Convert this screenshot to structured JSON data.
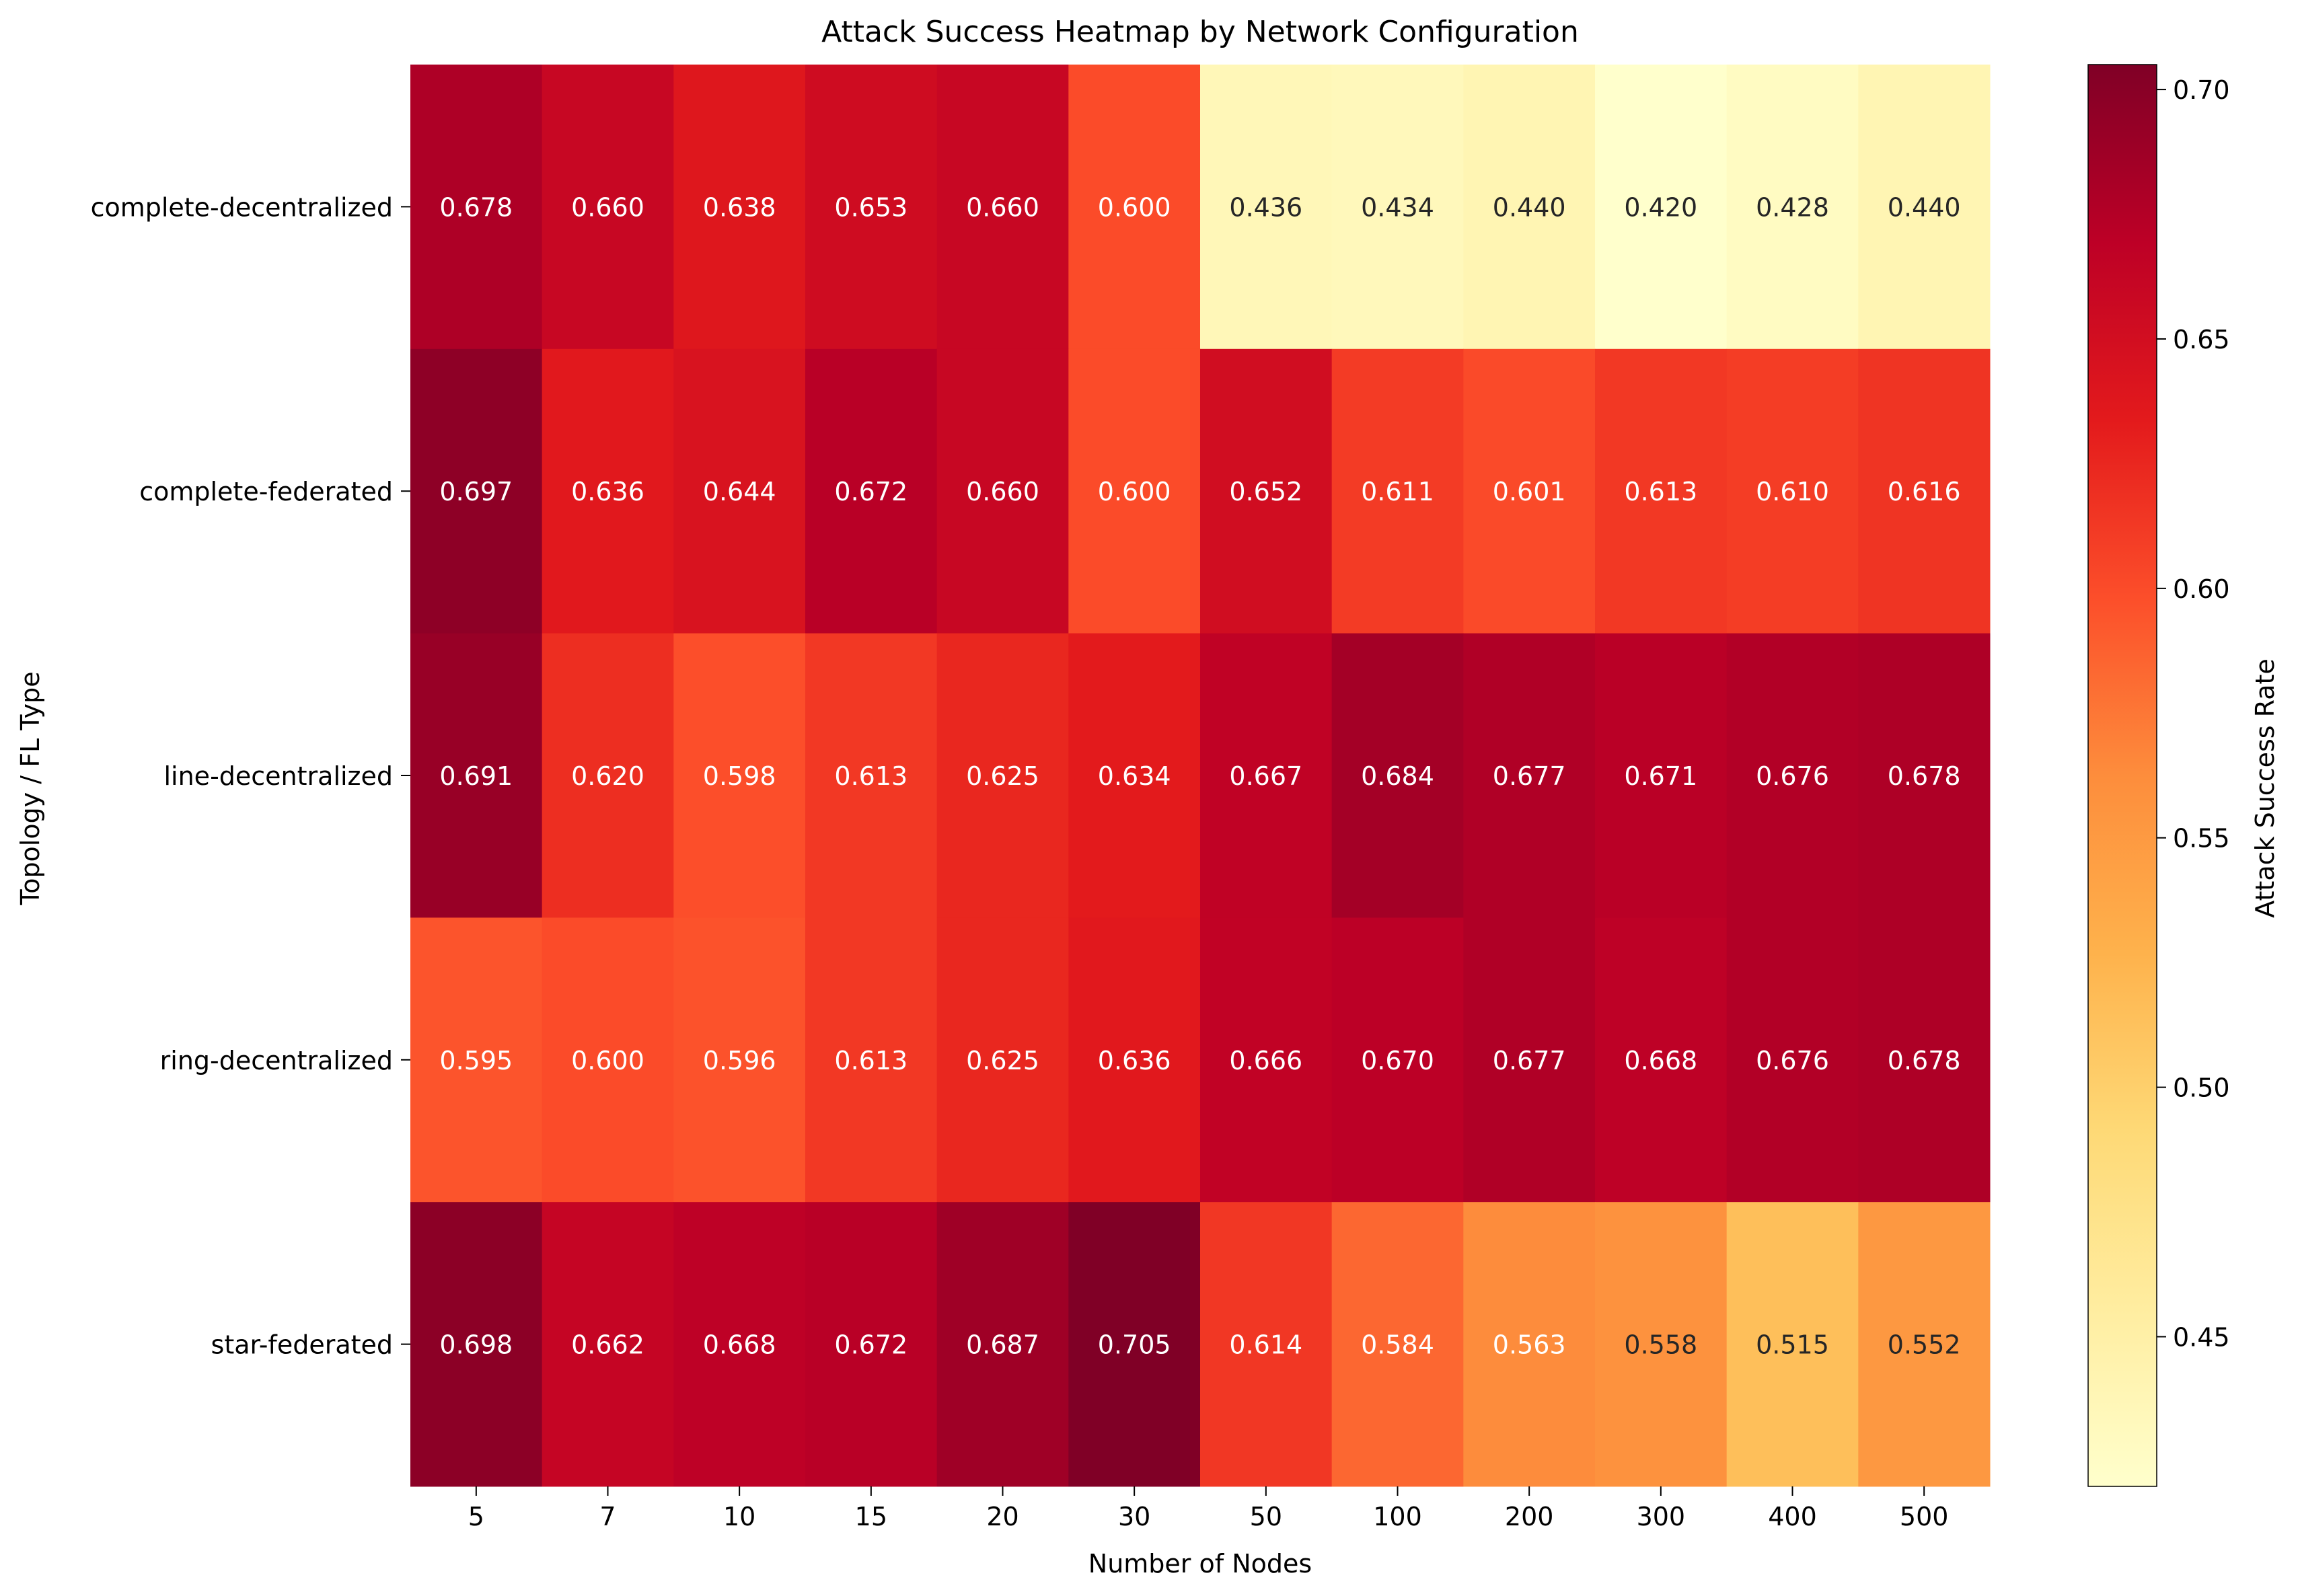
{
  "chart_data": {
    "type": "heatmap",
    "title": "Attack Success Heatmap by Network Configuration",
    "xlabel": "Number of Nodes",
    "ylabel": "Topology / FL Type",
    "x_categories": [
      "5",
      "7",
      "10",
      "15",
      "20",
      "30",
      "50",
      "100",
      "200",
      "300",
      "400",
      "500"
    ],
    "y_categories": [
      "complete-decentralized",
      "complete-federated",
      "line-decentralized",
      "ring-decentralized",
      "star-federated"
    ],
    "values": [
      [
        0.678,
        0.66,
        0.638,
        0.653,
        0.66,
        0.6,
        0.436,
        0.434,
        0.44,
        0.42,
        0.428,
        0.44
      ],
      [
        0.697,
        0.636,
        0.644,
        0.672,
        0.66,
        0.6,
        0.652,
        0.611,
        0.601,
        0.613,
        0.61,
        0.616
      ],
      [
        0.691,
        0.62,
        0.598,
        0.613,
        0.625,
        0.634,
        0.667,
        0.684,
        0.677,
        0.671,
        0.676,
        0.678
      ],
      [
        0.595,
        0.6,
        0.596,
        0.613,
        0.625,
        0.636,
        0.666,
        0.67,
        0.677,
        0.668,
        0.676,
        0.678
      ],
      [
        0.698,
        0.662,
        0.668,
        0.672,
        0.687,
        0.705,
        0.614,
        0.584,
        0.563,
        0.558,
        0.515,
        0.552
      ]
    ],
    "value_range": [
      0.42,
      0.705
    ],
    "colormap": "YlOrRd",
    "colorbar": {
      "label": "Attack Success Rate",
      "ticks": [
        "0.45",
        "0.50",
        "0.55",
        "0.60",
        "0.65",
        "0.70"
      ]
    },
    "grid": false
  }
}
